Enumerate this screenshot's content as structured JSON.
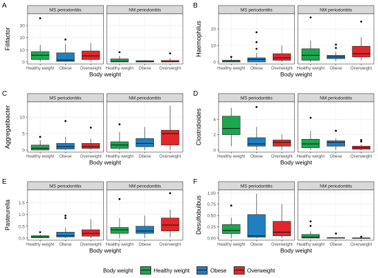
{
  "colors": {
    "healthy": "#1aa84c",
    "obese": "#1f7fc0",
    "over": "#e3262a",
    "strip": "#d9d9d9",
    "panel_border": "#333333",
    "grid": "#ebebeb"
  },
  "legend": {
    "title": "Body weight",
    "items": [
      "Healthy weight",
      "Obese",
      "Overweight"
    ]
  },
  "chart_data": [
    {
      "tag": "A",
      "type": "box",
      "ylabel": "Filifactor",
      "xlabel": "Body weight",
      "ylim": [
        0,
        38
      ],
      "yticks": [
        0,
        10,
        20,
        30
      ],
      "facets": [
        {
          "title": "MS periodontitis",
          "categories": [
            "Healthy weight",
            "Obese",
            "Overweight"
          ],
          "boxes": [
            {
              "min": 0.5,
              "q1": 2,
              "med": 5.5,
              "q3": 8.5,
              "max": 14,
              "outliers": [
                36
              ]
            },
            {
              "min": 0,
              "q1": 0.5,
              "med": 1.5,
              "q3": 7.5,
              "max": 15,
              "outliers": [
                18.5
              ]
            },
            {
              "min": 0,
              "q1": 2,
              "med": 5,
              "q3": 9,
              "max": 15.5,
              "outliers": []
            }
          ]
        },
        {
          "title": "NM periodontitis",
          "categories": [
            "Healthy weight",
            "Obese",
            "Overweight"
          ],
          "boxes": [
            {
              "min": 0,
              "q1": 0,
              "med": 0.5,
              "q3": 2.5,
              "max": 5,
              "outliers": [
                8
              ]
            },
            {
              "min": 0,
              "q1": 0,
              "med": 0.5,
              "q3": 1,
              "max": 1.5,
              "outliers": []
            },
            {
              "min": 0,
              "q1": 0,
              "med": 0.3,
              "q3": 1.2,
              "max": 3,
              "outliers": [
                7
              ]
            }
          ]
        }
      ]
    },
    {
      "tag": "B",
      "type": "box",
      "ylabel": "Haemophilus",
      "xlabel": "Body weight",
      "ylim": [
        0,
        28
      ],
      "yticks": [
        0,
        10,
        20
      ],
      "facets": [
        {
          "title": "MS periodontitis",
          "categories": [
            "Healthy weight",
            "Obese",
            "Overweight"
          ],
          "boxes": [
            {
              "min": 0,
              "q1": 0,
              "med": 0.5,
              "q3": 1,
              "max": 2,
              "outliers": [
                3
              ]
            },
            {
              "min": 0,
              "q1": 0,
              "med": 1.5,
              "q3": 2.5,
              "max": 5.5,
              "outliers": [
                8,
                12,
                18
              ]
            },
            {
              "min": 0,
              "q1": 1,
              "med": 2.5,
              "q3": 5,
              "max": 10,
              "outliers": []
            }
          ]
        },
        {
          "title": "NM periodontitis",
          "categories": [
            "Healthy weight",
            "Obese",
            "Overweight"
          ],
          "boxes": [
            {
              "min": 0,
              "q1": 1,
              "med": 4,
              "q3": 8,
              "max": 13,
              "outliers": [
                27
              ]
            },
            {
              "min": 0.5,
              "q1": 2,
              "med": 3,
              "q3": 4,
              "max": 6,
              "outliers": [
                8.5,
                10.5
              ]
            },
            {
              "min": 1,
              "q1": 3,
              "med": 5,
              "q3": 9.5,
              "max": 15,
              "outliers": [
                24.5
              ]
            }
          ]
        }
      ]
    },
    {
      "tag": "C",
      "type": "box",
      "ylabel": "Aggregatibacter",
      "xlabel": "Body weight",
      "ylim": [
        0,
        14
      ],
      "yticks": [
        0,
        5,
        10
      ],
      "facets": [
        {
          "title": "MS periodontitis",
          "categories": [
            "Healthy weight",
            "Obese",
            "Overweight"
          ],
          "boxes": [
            {
              "min": 0,
              "q1": 0,
              "med": 0.5,
              "q3": 1.5,
              "max": 3,
              "outliers": [
                4
              ]
            },
            {
              "min": 0,
              "q1": 0.3,
              "med": 1,
              "q3": 2,
              "max": 4,
              "outliers": [
                8.8
              ]
            },
            {
              "min": 0,
              "q1": 0.5,
              "med": 1,
              "q3": 2,
              "max": 3.5,
              "outliers": [
                6.8
              ]
            }
          ]
        },
        {
          "title": "NM periodontitis",
          "categories": [
            "Healthy weight",
            "Obese",
            "Overweight"
          ],
          "boxes": [
            {
              "min": 0,
              "q1": 0.5,
              "med": 1.5,
              "q3": 2.5,
              "max": 5.5,
              "outliers": [
                7.8
              ]
            },
            {
              "min": 0,
              "q1": 1,
              "med": 2,
              "q3": 3.5,
              "max": 7,
              "outliers": []
            },
            {
              "min": 0,
              "q1": 1.5,
              "med": 5,
              "q3": 6,
              "max": 13.5,
              "outliers": []
            }
          ]
        }
      ]
    },
    {
      "tag": "D",
      "type": "box",
      "ylabel": "Clostridioides",
      "xlabel": "Body weight",
      "ylim": [
        0,
        6
      ],
      "yticks": [
        0,
        2,
        4
      ],
      "facets": [
        {
          "title": "MS periodontitis",
          "categories": [
            "Healthy weight",
            "Obese",
            "Overweight"
          ],
          "boxes": [
            {
              "min": 0.5,
              "q1": 2,
              "med": 2.8,
              "q3": 4.4,
              "max": 5.5,
              "outliers": []
            },
            {
              "min": 0,
              "q1": 0.5,
              "med": 0.8,
              "q3": 1.6,
              "max": 3,
              "outliers": [
                5.6
              ]
            },
            {
              "min": 0,
              "q1": 0.5,
              "med": 1,
              "q3": 1.3,
              "max": 2,
              "outliers": []
            }
          ]
        },
        {
          "title": "NM periodontitis",
          "categories": [
            "Healthy weight",
            "Obese",
            "Overweight"
          ],
          "boxes": [
            {
              "min": 0,
              "q1": 0.3,
              "med": 0.8,
              "q3": 1.4,
              "max": 2.5,
              "outliers": [
                4.2
              ]
            },
            {
              "min": 0,
              "q1": 0.5,
              "med": 1,
              "q3": 1.2,
              "max": 1.5,
              "outliers": [
                2.5
              ]
            },
            {
              "min": 0,
              "q1": 0.1,
              "med": 0.3,
              "q3": 0.5,
              "max": 0.7,
              "outliers": [
                1.1,
                1.3
              ]
            }
          ]
        }
      ]
    },
    {
      "tag": "E",
      "type": "box",
      "ylabel": "Pasteurella",
      "xlabel": "Body weight",
      "ylim": [
        0,
        1.95
      ],
      "yticks": [
        0.0,
        0.5,
        1.0,
        1.5
      ],
      "facets": [
        {
          "title": "MS periodontitis",
          "categories": [
            "Healthy weight",
            "Obese",
            "Overweight"
          ],
          "boxes": [
            {
              "min": 0,
              "q1": 0.02,
              "med": 0.05,
              "q3": 0.1,
              "max": 0.15,
              "outliers": [
                0.25
              ]
            },
            {
              "min": 0,
              "q1": 0.05,
              "med": 0.1,
              "q3": 0.25,
              "max": 0.45,
              "outliers": [
                0.85,
                0.95
              ]
            },
            {
              "min": 0,
              "q1": 0.08,
              "med": 0.2,
              "q3": 0.35,
              "max": 0.8,
              "outliers": []
            }
          ]
        },
        {
          "title": "NM periodontitis",
          "categories": [
            "Healthy weight",
            "Obese",
            "Overweight"
          ],
          "boxes": [
            {
              "min": 0,
              "q1": 0.2,
              "med": 0.35,
              "q3": 0.45,
              "max": 0.85,
              "outliers": [
                1.65
              ]
            },
            {
              "min": 0,
              "q1": 0.2,
              "med": 0.3,
              "q3": 0.5,
              "max": 0.95,
              "outliers": []
            },
            {
              "min": 0.05,
              "q1": 0.3,
              "med": 0.55,
              "q3": 0.85,
              "max": 1.2,
              "outliers": [
                1.9
              ]
            }
          ]
        }
      ]
    },
    {
      "tag": "F",
      "type": "box",
      "ylabel": "Desulfobulbus",
      "xlabel": "Body weight",
      "ylim": [
        0,
        1.02
      ],
      "yticks": [
        0.0,
        0.25,
        0.5,
        0.75,
        1.0
      ],
      "ytick_labels": [
        "0.00",
        "0.25",
        "0.50",
        "0.75",
        "1.00"
      ],
      "facets": [
        {
          "title": "MS periodontitis",
          "categories": [
            "Healthy weight",
            "Obese",
            "Overweight"
          ],
          "boxes": [
            {
              "min": 0,
              "q1": 0.1,
              "med": 0.17,
              "q3": 0.3,
              "max": 0.45,
              "outliers": [
                0.72
              ]
            },
            {
              "min": 0,
              "q1": 0.02,
              "med": 0.05,
              "q3": 0.52,
              "max": 0.98,
              "outliers": []
            },
            {
              "min": 0,
              "q1": 0.05,
              "med": 0.13,
              "q3": 0.37,
              "max": 0.75,
              "outliers": []
            }
          ]
        },
        {
          "title": "NM periodontitis",
          "categories": [
            "Healthy weight",
            "Obese",
            "Overweight"
          ],
          "boxes": [
            {
              "min": 0,
              "q1": 0,
              "med": 0.02,
              "q3": 0.08,
              "max": 0.15,
              "outliers": [
                0.27,
                0.37
              ]
            },
            {
              "min": 0,
              "q1": 0,
              "med": 0,
              "q3": 0.01,
              "max": 0.02,
              "outliers": [
                0.1
              ]
            },
            {
              "min": 0,
              "q1": 0,
              "med": 0,
              "q3": 0.005,
              "max": 0.01,
              "outliers": [
                0.03
              ]
            }
          ]
        }
      ]
    }
  ]
}
